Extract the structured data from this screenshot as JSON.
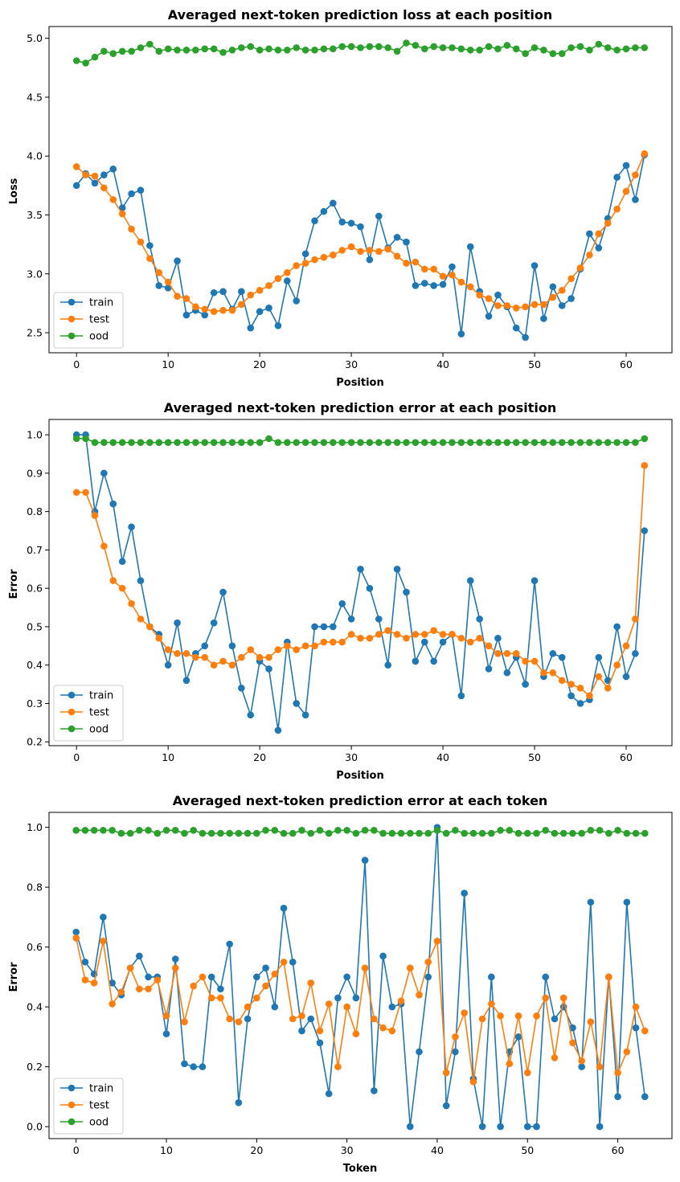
{
  "colors": {
    "train": "#1f77b4",
    "test": "#ff7f0e",
    "ood": "#2ca02c"
  },
  "chart_data": [
    {
      "type": "line",
      "title": "Averaged next-token prediction loss at each position",
      "xlabel": "Position",
      "ylabel": "Loss",
      "xlim": [
        -3,
        65
      ],
      "ylim": [
        2.33,
        5.1
      ],
      "xticks": [
        0,
        10,
        20,
        30,
        40,
        50,
        60
      ],
      "yticks": [
        2.5,
        3.0,
        3.5,
        4.0,
        4.5,
        5.0
      ],
      "ytick_labels": [
        "2.5",
        "3.0",
        "3.5",
        "4.0",
        "4.5",
        "5.0"
      ],
      "legend_position": "lower-left",
      "series": [
        {
          "name": "train",
          "y": [
            3.75,
            3.85,
            3.77,
            3.84,
            3.89,
            3.56,
            3.68,
            3.71,
            3.24,
            2.9,
            2.88,
            3.11,
            2.65,
            2.69,
            2.65,
            2.84,
            2.85,
            2.7,
            2.85,
            2.54,
            2.68,
            2.71,
            2.56,
            2.94,
            2.77,
            3.17,
            3.45,
            3.53,
            3.6,
            3.44,
            3.43,
            3.4,
            3.12,
            3.49,
            3.22,
            3.31,
            3.27,
            2.9,
            2.92,
            2.9,
            2.91,
            3.06,
            2.49,
            3.23,
            2.85,
            2.64,
            2.82,
            2.72,
            2.54,
            2.46,
            3.07,
            2.62,
            2.89,
            2.73,
            2.79,
            3.04,
            3.34,
            3.22,
            3.47,
            3.82,
            3.92,
            3.63,
            4.01
          ]
        },
        {
          "name": "test",
          "y": [
            3.91,
            3.84,
            3.83,
            3.73,
            3.63,
            3.51,
            3.38,
            3.27,
            3.13,
            3.01,
            2.93,
            2.81,
            2.79,
            2.72,
            2.7,
            2.68,
            2.69,
            2.69,
            2.74,
            2.82,
            2.86,
            2.9,
            2.96,
            3.01,
            3.07,
            3.09,
            3.12,
            3.14,
            3.16,
            3.2,
            3.23,
            3.19,
            3.2,
            3.19,
            3.21,
            3.15,
            3.09,
            3.1,
            3.04,
            3.04,
            2.98,
            2.99,
            2.93,
            2.89,
            2.82,
            2.79,
            2.73,
            2.73,
            2.71,
            2.72,
            2.74,
            2.74,
            2.8,
            2.86,
            2.96,
            3.05,
            3.16,
            3.34,
            3.43,
            3.55,
            3.7,
            3.84,
            4.02
          ]
        },
        {
          "name": "ood",
          "y": [
            4.81,
            4.79,
            4.84,
            4.89,
            4.87,
            4.89,
            4.89,
            4.92,
            4.95,
            4.89,
            4.91,
            4.9,
            4.9,
            4.9,
            4.91,
            4.91,
            4.88,
            4.9,
            4.92,
            4.93,
            4.9,
            4.91,
            4.9,
            4.9,
            4.92,
            4.9,
            4.9,
            4.91,
            4.91,
            4.93,
            4.93,
            4.92,
            4.93,
            4.93,
            4.92,
            4.89,
            4.96,
            4.94,
            4.91,
            4.93,
            4.92,
            4.92,
            4.91,
            4.9,
            4.9,
            4.93,
            4.91,
            4.94,
            4.91,
            4.87,
            4.92,
            4.9,
            4.87,
            4.87,
            4.92,
            4.93,
            4.9,
            4.95,
            4.92,
            4.9,
            4.91,
            4.92,
            4.92
          ]
        }
      ]
    },
    {
      "type": "line",
      "title": "Averaged next-token prediction error at each position",
      "xlabel": "Position",
      "ylabel": "Error",
      "xlim": [
        -3,
        65
      ],
      "ylim": [
        0.19,
        1.04
      ],
      "xticks": [
        0,
        10,
        20,
        30,
        40,
        50,
        60
      ],
      "yticks": [
        0.2,
        0.3,
        0.4,
        0.5,
        0.6,
        0.7,
        0.8,
        0.9,
        1.0
      ],
      "ytick_labels": [
        "0.2",
        "0.3",
        "0.4",
        "0.5",
        "0.6",
        "0.7",
        "0.8",
        "0.9",
        "1.0"
      ],
      "legend_position": "lower-left",
      "series": [
        {
          "name": "train",
          "y": [
            1.0,
            1.0,
            0.8,
            0.9,
            0.82,
            0.67,
            0.76,
            0.62,
            0.5,
            0.48,
            0.4,
            0.51,
            0.36,
            0.43,
            0.45,
            0.51,
            0.59,
            0.45,
            0.34,
            0.27,
            0.41,
            0.39,
            0.23,
            0.46,
            0.3,
            0.27,
            0.5,
            0.5,
            0.5,
            0.56,
            0.52,
            0.65,
            0.6,
            0.52,
            0.4,
            0.65,
            0.59,
            0.41,
            0.46,
            0.41,
            0.46,
            0.48,
            0.32,
            0.62,
            0.52,
            0.39,
            0.47,
            0.38,
            0.42,
            0.35,
            0.62,
            0.37,
            0.43,
            0.42,
            0.32,
            0.3,
            0.31,
            0.42,
            0.36,
            0.5,
            0.37,
            0.43,
            0.75
          ]
        },
        {
          "name": "test",
          "y": [
            0.85,
            0.85,
            0.79,
            0.71,
            0.62,
            0.6,
            0.56,
            0.52,
            0.5,
            0.47,
            0.44,
            0.43,
            0.43,
            0.42,
            0.42,
            0.4,
            0.41,
            0.4,
            0.42,
            0.44,
            0.42,
            0.42,
            0.44,
            0.45,
            0.44,
            0.45,
            0.45,
            0.46,
            0.46,
            0.46,
            0.48,
            0.47,
            0.47,
            0.48,
            0.49,
            0.48,
            0.47,
            0.48,
            0.48,
            0.49,
            0.48,
            0.48,
            0.47,
            0.46,
            0.47,
            0.45,
            0.43,
            0.43,
            0.43,
            0.41,
            0.41,
            0.38,
            0.38,
            0.36,
            0.35,
            0.34,
            0.32,
            0.37,
            0.34,
            0.4,
            0.45,
            0.52,
            0.92
          ]
        },
        {
          "name": "ood",
          "y": [
            0.99,
            0.99,
            0.98,
            0.98,
            0.98,
            0.98,
            0.98,
            0.98,
            0.98,
            0.98,
            0.98,
            0.98,
            0.98,
            0.98,
            0.98,
            0.98,
            0.98,
            0.98,
            0.98,
            0.98,
            0.98,
            0.99,
            0.98,
            0.98,
            0.98,
            0.98,
            0.98,
            0.98,
            0.98,
            0.98,
            0.98,
            0.98,
            0.98,
            0.98,
            0.98,
            0.98,
            0.98,
            0.98,
            0.98,
            0.98,
            0.98,
            0.98,
            0.98,
            0.98,
            0.98,
            0.98,
            0.98,
            0.98,
            0.98,
            0.98,
            0.98,
            0.98,
            0.98,
            0.98,
            0.98,
            0.98,
            0.98,
            0.98,
            0.98,
            0.98,
            0.98,
            0.98,
            0.99
          ]
        }
      ]
    },
    {
      "type": "line",
      "title": "Averaged next-token prediction error at each token",
      "xlabel": "Token",
      "ylabel": "Error",
      "xlim": [
        -3,
        66
      ],
      "ylim": [
        -0.04,
        1.05
      ],
      "xticks": [
        0,
        10,
        20,
        30,
        40,
        50,
        60
      ],
      "yticks": [
        0.0,
        0.2,
        0.4,
        0.6,
        0.8,
        1.0
      ],
      "ytick_labels": [
        "0.0",
        "0.2",
        "0.4",
        "0.6",
        "0.8",
        "1.0"
      ],
      "legend_position": "lower-left",
      "series": [
        {
          "name": "train",
          "y": [
            0.65,
            0.55,
            0.51,
            0.7,
            0.48,
            0.44,
            0.53,
            0.57,
            0.5,
            0.5,
            0.31,
            0.56,
            0.21,
            0.2,
            0.2,
            0.5,
            0.46,
            0.61,
            0.08,
            0.36,
            0.5,
            0.53,
            0.4,
            0.73,
            0.55,
            0.32,
            0.36,
            0.28,
            0.11,
            0.43,
            0.5,
            0.43,
            0.89,
            0.12,
            0.57,
            0.4,
            0.41,
            0.0,
            0.25,
            0.5,
            1.0,
            0.07,
            0.25,
            0.78,
            0.16,
            0.0,
            0.5,
            0.0,
            0.25,
            0.3,
            0.0,
            0.0,
            0.5,
            0.36,
            0.4,
            0.33,
            0.2,
            0.75,
            0.0,
            0.5,
            0.1,
            0.75,
            0.33,
            0.1
          ]
        },
        {
          "name": "test",
          "y": [
            0.63,
            0.49,
            0.48,
            0.62,
            0.41,
            0.45,
            0.53,
            0.46,
            0.46,
            0.49,
            0.37,
            0.53,
            0.35,
            0.47,
            0.5,
            0.43,
            0.43,
            0.36,
            0.35,
            0.4,
            0.43,
            0.47,
            0.51,
            0.55,
            0.36,
            0.37,
            0.48,
            0.32,
            0.41,
            0.2,
            0.4,
            0.31,
            0.53,
            0.36,
            0.33,
            0.32,
            0.42,
            0.53,
            0.44,
            0.55,
            0.62,
            0.18,
            0.3,
            0.38,
            0.15,
            0.36,
            0.41,
            0.37,
            0.21,
            0.37,
            0.18,
            0.37,
            0.43,
            0.23,
            0.43,
            0.28,
            0.22,
            0.35,
            0.2,
            0.5,
            0.18,
            0.25,
            0.4,
            0.32
          ]
        },
        {
          "name": "ood",
          "y": [
            0.99,
            0.99,
            0.99,
            0.99,
            0.99,
            0.98,
            0.98,
            0.99,
            0.99,
            0.98,
            0.99,
            0.99,
            0.98,
            0.99,
            0.98,
            0.98,
            0.98,
            0.98,
            0.98,
            0.98,
            0.98,
            0.99,
            0.99,
            0.98,
            0.98,
            0.99,
            0.98,
            0.99,
            0.98,
            0.99,
            0.99,
            0.98,
            0.99,
            0.99,
            0.98,
            0.98,
            0.98,
            0.98,
            0.98,
            0.98,
            0.99,
            0.98,
            0.99,
            0.98,
            0.98,
            0.98,
            0.98,
            0.99,
            0.99,
            0.98,
            0.98,
            0.98,
            0.99,
            0.98,
            0.98,
            0.98,
            0.98,
            0.99,
            0.99,
            0.98,
            0.99,
            0.98,
            0.98,
            0.98
          ]
        }
      ]
    }
  ]
}
